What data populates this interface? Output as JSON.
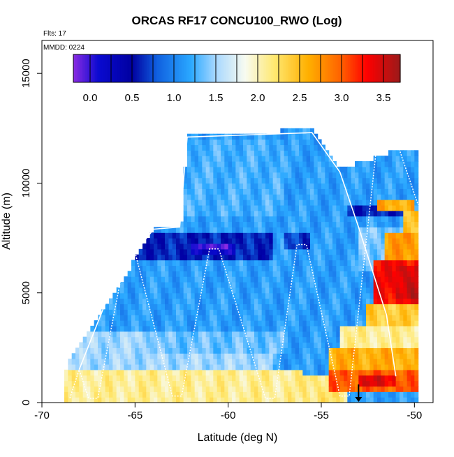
{
  "chart_data": {
    "type": "heatmap",
    "title": "ORCAS RF17 CONCU100_RWO (Log)",
    "annotations": {
      "flights": "Flts: 17",
      "date": "MMDD: 0224"
    },
    "xlabel": "Latitude (deg N)",
    "ylabel": "Altitude (m)",
    "xlim": [
      -70,
      -49
    ],
    "ylim": [
      0,
      16500
    ],
    "x_ticks": [
      -70,
      -65,
      -60,
      -55,
      -50
    ],
    "x_tick_labels": [
      "-70",
      "-65",
      "-60",
      "-55",
      "-50"
    ],
    "y_ticks": [
      0,
      5000,
      10000,
      15000
    ],
    "y_tick_labels": [
      "0",
      "5000",
      "10000",
      "15000"
    ],
    "colorbar": {
      "range": [
        -0.2,
        3.7
      ],
      "ticks": [
        0.0,
        0.5,
        1.0,
        1.5,
        2.0,
        2.5,
        3.0,
        3.5
      ],
      "tick_labels": [
        "0.0",
        "0.5",
        "1.0",
        "1.5",
        "2.0",
        "2.5",
        "3.0",
        "3.5"
      ],
      "colors": [
        {
          "v": -0.2,
          "c": "#8a2be2"
        },
        {
          "v": 0.1,
          "c": "#0a0ad0"
        },
        {
          "v": 0.5,
          "c": "#0000a0"
        },
        {
          "v": 0.8,
          "c": "#1060e0"
        },
        {
          "v": 1.2,
          "c": "#2aa8ff"
        },
        {
          "v": 1.5,
          "c": "#a8d8ff"
        },
        {
          "v": 1.85,
          "c": "#f8fbf0"
        },
        {
          "v": 2.2,
          "c": "#ffe870"
        },
        {
          "v": 2.6,
          "c": "#ffb000"
        },
        {
          "v": 3.0,
          "c": "#ff6000"
        },
        {
          "v": 3.3,
          "c": "#ff0000"
        },
        {
          "v": 3.7,
          "c": "#9b1a1a"
        }
      ]
    },
    "ceiling_profile": [
      [
        -68.7,
        1500
      ],
      [
        -66.0,
        5000
      ],
      [
        -64.0,
        7800
      ],
      [
        -62.5,
        8000
      ],
      [
        -62.2,
        12100
      ],
      [
        -55.4,
        12300
      ],
      [
        -54.0,
        10500
      ],
      [
        -50.5,
        11500
      ],
      [
        -49.8,
        11500
      ]
    ],
    "background_value": 1.15,
    "regions": [
      {
        "lat": [
          -68.8,
          -56.0
        ],
        "alt": [
          0,
          1600
        ],
        "value": 2.1
      },
      {
        "lat": [
          -56.0,
          -53.5
        ],
        "alt": [
          0,
          1200
        ],
        "value": 2.2
      },
      {
        "lat": [
          -68.5,
          -57.5
        ],
        "alt": [
          1600,
          3300
        ],
        "value": 1.5
      },
      {
        "lat": [
          -64.0,
          -57.0
        ],
        "alt": [
          2300,
          3300
        ],
        "value": 1.35
      },
      {
        "lat": [
          -66.5,
          -57.5
        ],
        "alt": [
          6500,
          7700
        ],
        "value": 0.6
      },
      {
        "lat": [
          -62.0,
          -59.5
        ],
        "alt": [
          6800,
          7300
        ],
        "value": 0.2
      },
      {
        "lat": [
          -61.5,
          -60.0
        ],
        "alt": [
          6900,
          7200
        ],
        "value": -0.1
      },
      {
        "lat": [
          -57.0,
          -55.5
        ],
        "alt": [
          7000,
          7800
        ],
        "value": 0.7
      },
      {
        "lat": [
          -53.5,
          -50.5
        ],
        "alt": [
          8400,
          9000
        ],
        "value": 0.6
      },
      {
        "lat": [
          -53.0,
          -50.5
        ],
        "alt": [
          6000,
          8000
        ],
        "value": 1.4
      },
      {
        "lat": [
          -68.0,
          -57.0
        ],
        "alt": [
          8500,
          12000
        ],
        "value": 1.25
      },
      {
        "lat": [
          -51.5,
          -49.7
        ],
        "alt": [
          6500,
          7800
        ],
        "value": 2.7
      },
      {
        "lat": [
          -52.2,
          -49.6
        ],
        "alt": [
          4500,
          6500
        ],
        "value": 3.3
      },
      {
        "lat": [
          -51.0,
          -49.6
        ],
        "alt": [
          4800,
          6200
        ],
        "value": 3.5
      },
      {
        "lat": [
          -52.5,
          -49.8
        ],
        "alt": [
          3400,
          4500
        ],
        "value": 2.4
      },
      {
        "lat": [
          -54.0,
          -49.8
        ],
        "alt": [
          2500,
          3400
        ],
        "value": 2.1
      },
      {
        "lat": [
          -54.5,
          -49.8
        ],
        "alt": [
          1400,
          2500
        ],
        "value": 2.6
      },
      {
        "lat": [
          -54.5,
          -49.8
        ],
        "alt": [
          600,
          1400
        ],
        "value": 3.0
      },
      {
        "lat": [
          -53.0,
          -51.0
        ],
        "alt": [
          800,
          1200
        ],
        "value": 3.4
      },
      {
        "lat": [
          -52.0,
          -49.9
        ],
        "alt": [
          8800,
          9300
        ],
        "value": 2.6
      },
      {
        "lat": [
          -50.5,
          -49.6
        ],
        "alt": [
          7800,
          8800
        ],
        "value": 2.4
      },
      {
        "lat": [
          -49.8,
          -49.3
        ],
        "alt": [
          4400,
          4900
        ],
        "value": 3.4
      }
    ],
    "flight_track": [
      [
        -68.5,
        200
      ],
      [
        -68.0,
        1500
      ],
      [
        -67.5,
        200
      ],
      [
        -67.0,
        200
      ],
      [
        -65.5,
        6800
      ],
      [
        -65.0,
        6850
      ],
      [
        -63.0,
        300
      ],
      [
        -62.5,
        300
      ],
      [
        -61.0,
        7000
      ],
      [
        -60.5,
        7000
      ],
      [
        -58.0,
        200
      ],
      [
        -57.5,
        200
      ],
      [
        -56.3,
        7200
      ],
      [
        -55.8,
        7200
      ],
      [
        -54.0,
        300
      ],
      [
        -53.5,
        300
      ],
      [
        -52.0,
        11900
      ],
      [
        -51.0,
        12000
      ],
      [
        -49.8,
        9000
      ]
    ],
    "ceiling_track": [
      [
        -68.0,
        1500
      ],
      [
        -66.0,
        5800
      ],
      [
        -64.0,
        7900
      ],
      [
        -62.6,
        8000
      ],
      [
        -62.2,
        12100
      ],
      [
        -55.5,
        12300
      ],
      [
        -54.0,
        10500
      ],
      [
        -53.0,
        8000
      ],
      [
        -51.5,
        4000
      ],
      [
        -51.0,
        1200
      ]
    ],
    "marker": {
      "lat": -53.0,
      "alt": 700
    }
  }
}
